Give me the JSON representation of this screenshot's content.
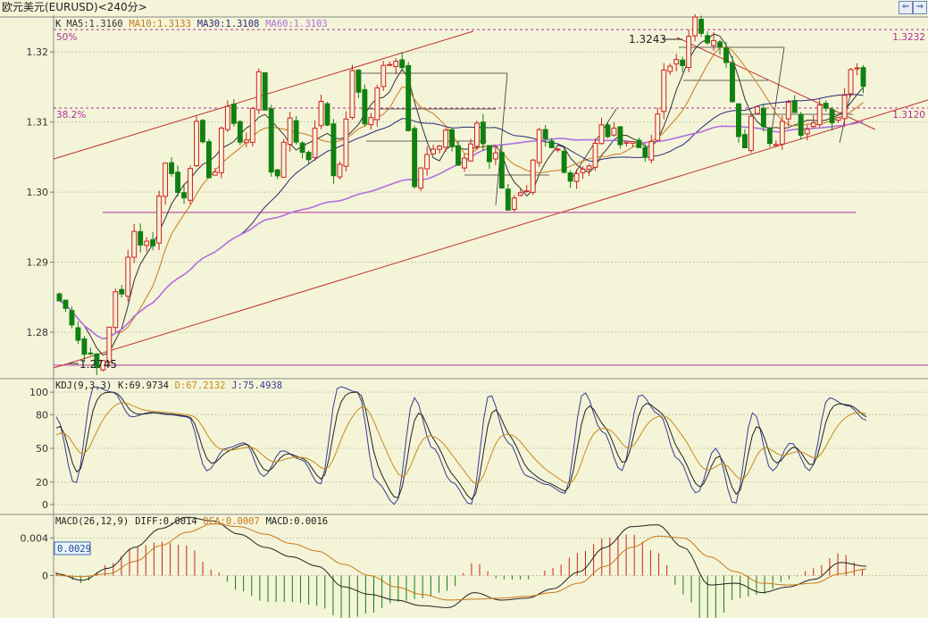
{
  "window": {
    "title": "欧元美元(EURUSD)<240分>",
    "nav_prev_glyph": "⇐",
    "nav_next_glyph": "⇒"
  },
  "colors": {
    "background": "#f4f4d8",
    "up": "#d02020",
    "down": "#108010",
    "ma5": "#333333",
    "ma10": "#c87a1a",
    "ma30": "#2a2a7a",
    "ma60": "#b070e0",
    "channel": "#c03030",
    "support": "#b0309a",
    "fib": "#b0309a",
    "kdj_k": "#222222",
    "kdj_d": "#c88a1a",
    "kdj_j": "#3a3a9a",
    "macd_diff": "#222222",
    "macd_dea": "#c87a1a"
  },
  "chart_data": [
    {
      "type": "candlestick",
      "indicator": "K",
      "legend": [
        {
          "label": "K",
          "color": "#222222"
        },
        {
          "label": "MA5:1.3160",
          "color": "#333333"
        },
        {
          "label": "MA10:1.3133",
          "color": "#c87a1a"
        },
        {
          "label": "MA30:1.3108",
          "color": "#2a2a7a"
        },
        {
          "label": "MA60:1.3103",
          "color": "#b070e0"
        }
      ],
      "y_ticks": [
        "1.32",
        "1.31",
        "1.30",
        "1.29",
        "1.28"
      ],
      "ylim": [
        1.2735,
        1.325
      ],
      "annotations": {
        "high": "1.3243",
        "low": "1.2745",
        "fib_50": "50%",
        "fib_382": "38.2%",
        "fib_50_value": "1.3232",
        "fib_382_value": "1.3120"
      },
      "levels": {
        "fib_50": 1.3232,
        "fib_382": 1.312,
        "support": 1.2971,
        "low": 1.2753
      },
      "ohlc_anchors": [
        [
          1.2845,
          1.282,
          1.277
        ],
        [
          1.277,
          1.275,
          1.286
        ],
        [
          1.286,
          1.294,
          1.293
        ],
        [
          1.293,
          1.305,
          1.3
        ],
        [
          1.3,
          1.309,
          1.303
        ],
        [
          1.303,
          1.313,
          1.307
        ],
        [
          1.307,
          1.318,
          1.303
        ],
        [
          1.303,
          1.311,
          1.305
        ],
        [
          1.305,
          1.314,
          1.303
        ],
        [
          1.303,
          1.318,
          1.31
        ],
        [
          1.31,
          1.319,
          1.3188
        ],
        [
          1.3188,
          1.301,
          1.305
        ],
        [
          1.305,
          1.309,
          1.304
        ],
        [
          1.304,
          1.31,
          1.305
        ],
        [
          1.305,
          1.298,
          1.299
        ],
        [
          1.299,
          1.308,
          1.306
        ],
        [
          1.306,
          1.302,
          1.304
        ],
        [
          1.304,
          1.309,
          1.308
        ],
        [
          1.308,
          1.307,
          1.306
        ],
        [
          1.306,
          1.3165,
          1.319
        ],
        [
          1.319,
          1.324,
          1.3225
        ],
        [
          1.3225,
          1.318,
          1.307
        ],
        [
          1.307,
          1.313,
          1.308
        ],
        [
          1.308,
          1.312,
          1.309
        ],
        [
          1.309,
          1.313,
          1.311
        ],
        [
          1.311,
          1.318,
          1.316
        ]
      ]
    },
    {
      "type": "line",
      "indicator": "KDJ",
      "legend": [
        {
          "label": "KDJ(9,3,3)",
          "color": "#222222"
        },
        {
          "label": "K:69.9734",
          "color": "#222222"
        },
        {
          "label": "D:67.2132",
          "color": "#c88a1a"
        },
        {
          "label": "J:75.4938",
          "color": "#3a3a9a"
        }
      ],
      "y_ticks": [
        "100",
        "80",
        "50",
        "20",
        "0"
      ],
      "ylim": [
        -8,
        112
      ],
      "j_anchors": [
        78,
        18,
        105,
        100,
        78,
        82,
        80,
        78,
        30,
        50,
        55,
        25,
        48,
        40,
        18,
        105,
        100,
        20,
        0,
        95,
        50,
        20,
        0,
        98,
        55,
        25,
        18,
        10,
        100,
        65,
        30,
        98,
        80,
        40,
        10,
        50,
        0,
        82,
        30,
        55,
        30,
        95,
        88,
        75
      ]
    },
    {
      "type": "bar",
      "indicator": "MACD",
      "legend": [
        {
          "label": "MACD(26,12,9)",
          "color": "#222222"
        },
        {
          "label": "DIFF:0.0014",
          "color": "#222222"
        },
        {
          "label": "DEA:0.0007",
          "color": "#c87a1a"
        },
        {
          "label": "MACD:0.0016",
          "color": "#222222"
        }
      ],
      "y_ticks": [
        "0.004",
        "0"
      ],
      "ylim": [
        -0.0045,
        0.0065
      ],
      "current_value_label": "0.0029",
      "diff_anchors": [
        0.0002,
        -0.0005,
        0.0008,
        0.003,
        0.005,
        0.0062,
        0.0058,
        0.0044,
        0.003,
        0.002,
        0.001,
        -0.0012,
        -0.002,
        -0.0026,
        -0.0032,
        -0.0034,
        -0.0018,
        -0.0026,
        -0.0024,
        -0.0014,
        0.0004,
        0.003,
        0.0052,
        0.0054,
        0.003,
        -0.001,
        -0.0008,
        -0.0018,
        -0.0012,
        -0.0004,
        0.0014,
        0.001
      ],
      "dea_anchors": [
        0.0,
        -0.0001,
        0.0002,
        0.0015,
        0.0032,
        0.0046,
        0.0055,
        0.0052,
        0.0044,
        0.0034,
        0.0026,
        0.0012,
        0.0,
        -0.0012,
        -0.002,
        -0.0026,
        -0.0025,
        -0.0024,
        -0.0022,
        -0.0018,
        -0.0008,
        0.001,
        0.003,
        0.0042,
        0.004,
        0.002,
        0.0004,
        -0.0008,
        -0.001,
        -0.0008,
        0.0002,
        0.0007
      ]
    }
  ]
}
